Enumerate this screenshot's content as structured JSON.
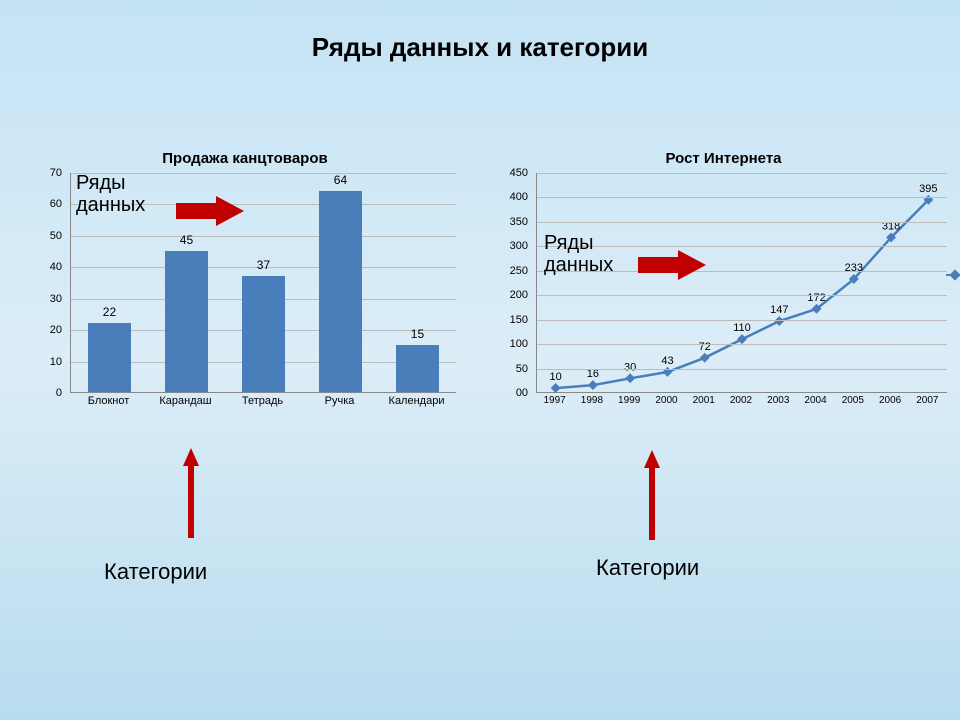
{
  "slide": {
    "title": "Ряды данных и категории"
  },
  "bar_chart": {
    "type": "bar",
    "title": "Продажа канцтоваров",
    "categories": [
      "Блокнот",
      "Карандаш",
      "Тетрадь",
      "Ручка",
      "Календари"
    ],
    "values": [
      22,
      45,
      37,
      64,
      15
    ],
    "bar_color": "#4a7ebb",
    "ylim": [
      0,
      70
    ],
    "ytick_step": 10,
    "grid_color": "#bcbcbc",
    "title_fontsize": 15,
    "label_fontsize": 11,
    "value_fontsize": 12
  },
  "line_chart": {
    "type": "line",
    "title": "Рост Интернета",
    "categories": [
      "1997",
      "1998",
      "1999",
      "2000",
      "2001",
      "2002",
      "2003",
      "2004",
      "2005",
      "2006",
      "2007"
    ],
    "values": [
      10,
      16,
      30,
      43,
      72,
      110,
      147,
      172,
      233,
      318,
      395
    ],
    "y_zero_label": "0",
    "line_color": "#4a7ebb",
    "marker_color": "#4a7ebb",
    "marker_size": 5,
    "line_width": 2.5,
    "ylim": [
      0,
      450
    ],
    "ytick_step": 50,
    "grid_color": "#bcbcbc",
    "title_fontsize": 15,
    "label_fontsize": 10,
    "value_fontsize": 11
  },
  "annotations": {
    "series_label": "Ряды\nданных",
    "categories_label": "Категории",
    "arrow_color": "#c00000",
    "legend_marker_color": "#4a7ebb"
  }
}
